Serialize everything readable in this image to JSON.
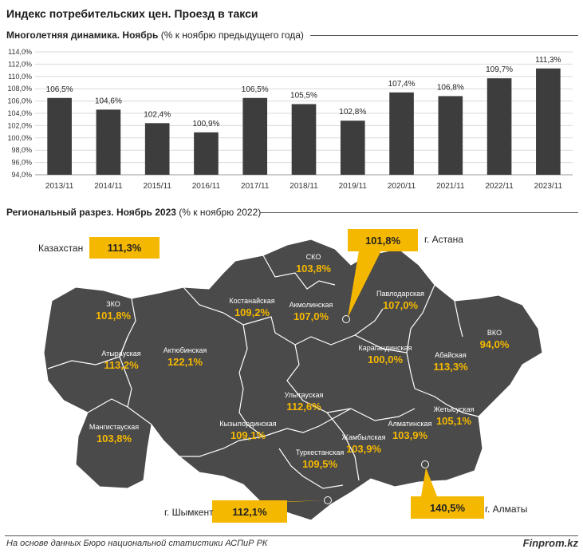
{
  "title": "Индекс потребительских цен. Проезд в такси",
  "section1": {
    "bold": "Многолетняя динамика. Ноябрь",
    "normal": " (% к ноябрю предыдущего года)"
  },
  "section2": {
    "bold": "Региональный разрез. Ноябрь 2023",
    "normal": " (% к ноябрю 2022)"
  },
  "footer": "На основе данных Бюро национальной статистики АСПиР РК",
  "brand": "Finprom.kz",
  "colors": {
    "bar": "#3d3d3d",
    "map": "#4a4a4a",
    "accent": "#f5b800",
    "value_text": "#f5b800"
  },
  "chart_data": [
    {
      "type": "bar",
      "title": "Многолетняя динамика. Ноябрь",
      "ylabel": "% к ноябрю предыдущего года",
      "categories": [
        "2013/11",
        "2014/11",
        "2015/11",
        "2016/11",
        "2017/11",
        "2018/11",
        "2019/11",
        "2020/11",
        "2021/11",
        "2022/11",
        "2023/11"
      ],
      "values": [
        106.5,
        104.6,
        102.4,
        100.9,
        106.5,
        105.5,
        102.8,
        107.4,
        106.8,
        109.7,
        111.3
      ],
      "value_labels": [
        "106,5%",
        "104,6%",
        "102,4%",
        "100,9%",
        "106,5%",
        "105,5%",
        "102,8%",
        "107,4%",
        "106,8%",
        "109,7%",
        "111,3%"
      ],
      "ylim": [
        94,
        114
      ],
      "yticks": [
        94,
        96,
        98,
        100,
        102,
        104,
        106,
        108,
        110,
        112,
        114
      ],
      "ytick_labels": [
        "94,0%",
        "96,0%",
        "98,0%",
        "100,0%",
        "102,0%",
        "104,0%",
        "106,0%",
        "108,0%",
        "110,0%",
        "112,0%",
        "114,0%"
      ],
      "grid": true
    },
    {
      "type": "map",
      "title": "Региональный разрез. Ноябрь 2023",
      "national": {
        "name": "Казахстан",
        "value": "111,3%"
      },
      "regions": [
        {
          "name": "ЗКО",
          "value": "101,8%"
        },
        {
          "name": "Атырауская",
          "value": "113,2%"
        },
        {
          "name": "Актюбинская",
          "value": "122,1%"
        },
        {
          "name": "Мангистауская",
          "value": "103,8%"
        },
        {
          "name": "Костанайская",
          "value": "109,2%"
        },
        {
          "name": "СКО",
          "value": "103,8%"
        },
        {
          "name": "Акмолинская",
          "value": "107,0%"
        },
        {
          "name": "Павлодарская",
          "value": "107,0%"
        },
        {
          "name": "Карагандинская",
          "value": "100,0%"
        },
        {
          "name": "ВКО",
          "value": "94,0%"
        },
        {
          "name": "Абайская",
          "value": "113,3%"
        },
        {
          "name": "Улытауская",
          "value": "112,6%"
        },
        {
          "name": "Кызылординская",
          "value": "109,1%"
        },
        {
          "name": "Туркестанская",
          "value": "109,5%"
        },
        {
          "name": "Жамбылская",
          "value": "103,9%"
        },
        {
          "name": "Алматинская",
          "value": "103,9%"
        },
        {
          "name": "Жетысуская",
          "value": "105,1%"
        }
      ],
      "cities": [
        {
          "name": "г. Астана",
          "value": "101,8%"
        },
        {
          "name": "г. Шымкент",
          "value": "112,1%"
        },
        {
          "name": "г. Алматы",
          "value": "140,5%"
        }
      ]
    }
  ]
}
